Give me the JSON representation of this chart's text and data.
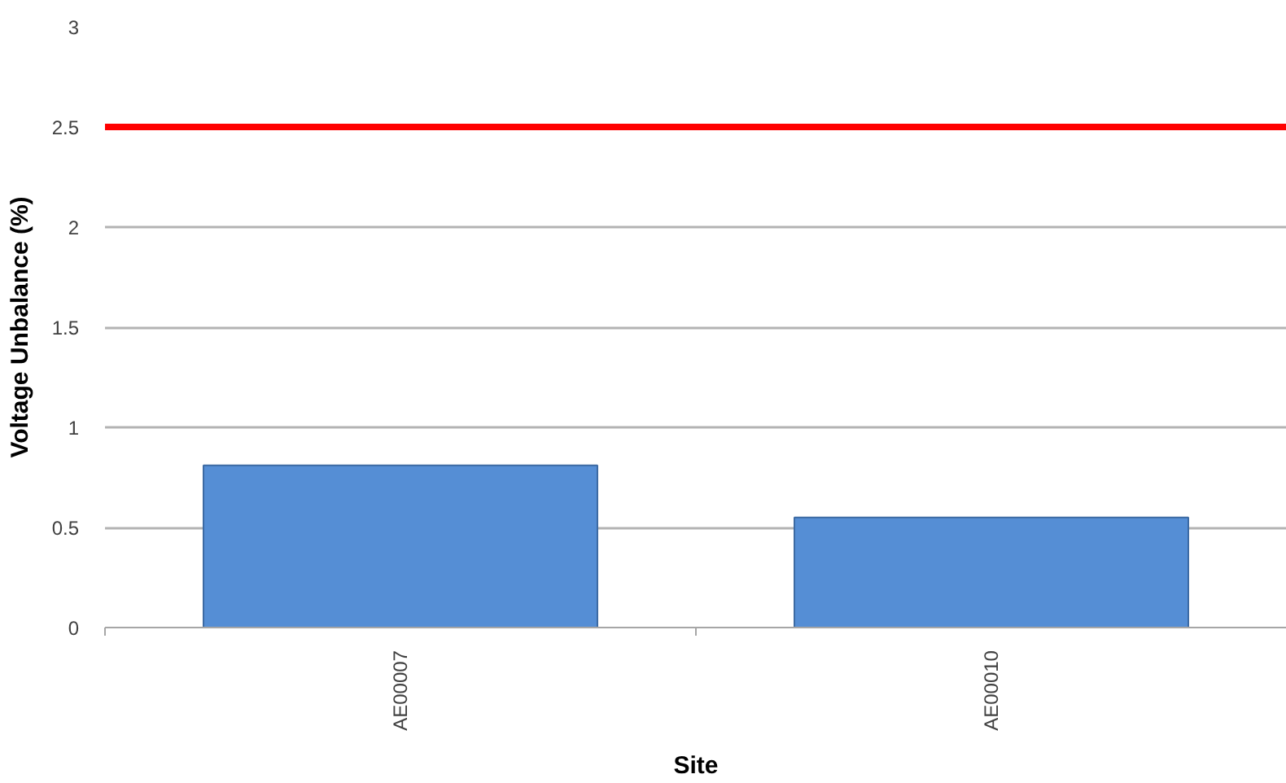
{
  "chart_data": {
    "type": "bar",
    "xlabel": "Site",
    "ylabel": "Voltage Unbalance (%)",
    "categories": [
      "AE00007",
      "AE00010"
    ],
    "values": [
      0.81,
      0.55
    ],
    "color": "#558ed5",
    "ylim": [
      0,
      3
    ],
    "yticks": [
      0,
      0.5,
      1,
      1.5,
      2,
      2.5,
      3
    ],
    "grid": "y",
    "ref_lines": [
      {
        "axis": "y",
        "value": 2.5,
        "color": "#ff0000"
      }
    ]
  }
}
